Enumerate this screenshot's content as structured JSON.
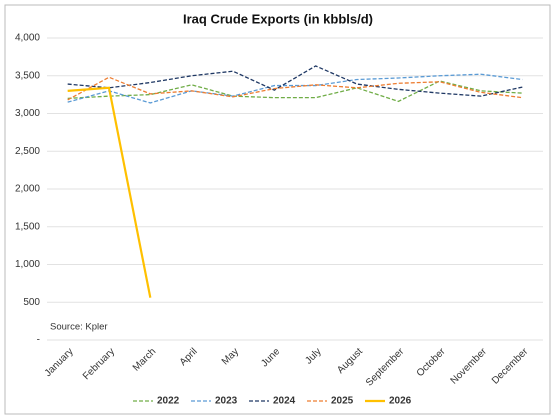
{
  "chart_data": {
    "type": "line",
    "title": "Iraq Crude Exports (in kbbls/d)",
    "annotation": "Source: Kpler",
    "categories": [
      "January",
      "February",
      "March",
      "April",
      "May",
      "June",
      "July",
      "August",
      "September",
      "October",
      "November",
      "December"
    ],
    "series": [
      {
        "name": "2022",
        "color": "#70ad47",
        "dashed": true,
        "values": [
          3200,
          3230,
          3250,
          3380,
          3230,
          3210,
          3210,
          3340,
          3160,
          3430,
          3300,
          3270
        ]
      },
      {
        "name": "2023",
        "color": "#5b9bd5",
        "dashed": true,
        "values": [
          3150,
          3300,
          3140,
          3300,
          3230,
          3370,
          3370,
          3450,
          3470,
          3500,
          3520,
          3450
        ]
      },
      {
        "name": "2024",
        "color": "#1f3864",
        "dashed": true,
        "values": [
          3390,
          3340,
          3410,
          3500,
          3560,
          3310,
          3630,
          3390,
          3320,
          3270,
          3230,
          3350
        ]
      },
      {
        "name": "2025",
        "color": "#ed7d31",
        "dashed": true,
        "values": [
          3180,
          3480,
          3260,
          3300,
          3220,
          3330,
          3380,
          3340,
          3400,
          3420,
          3280,
          3210
        ]
      },
      {
        "name": "2026",
        "color": "#ffc000",
        "dashed": false,
        "values": [
          3300,
          3340,
          560,
          null,
          null,
          null,
          null,
          null,
          null,
          null,
          null,
          null
        ]
      }
    ],
    "ylim": [
      0,
      4000
    ],
    "yticks": [
      {
        "value": 0,
        "label": "-"
      },
      500,
      {
        "value": 1000,
        "label": "1,000"
      },
      {
        "value": 1500,
        "label": "1,500"
      },
      {
        "value": 2000,
        "label": "2,000"
      },
      {
        "value": 2500,
        "label": "2,500"
      },
      {
        "value": 3000,
        "label": "3,000"
      },
      {
        "value": 3500,
        "label": "3,500"
      },
      {
        "value": 4000,
        "label": "4,000"
      }
    ],
    "grid": true,
    "legend": "bottom"
  }
}
